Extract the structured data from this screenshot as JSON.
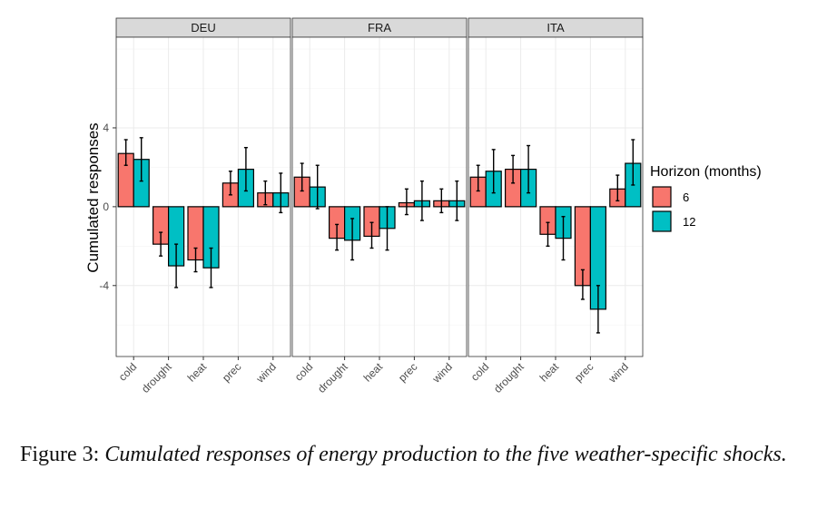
{
  "chart_data": {
    "type": "bar",
    "ylabel": "Cumulated responses",
    "yticks": [
      4,
      0,
      -4
    ],
    "ylim": [
      -7.6,
      8.6
    ],
    "categories": [
      "cold",
      "drought",
      "heat",
      "prec",
      "wind"
    ],
    "legend": {
      "title": "Horizon (months)",
      "placement": "right",
      "entries": [
        {
          "label": "6",
          "color": "#F8766D"
        },
        {
          "label": "12",
          "color": "#00BFC4"
        }
      ]
    },
    "panels": [
      {
        "name": "DEU",
        "series": [
          {
            "name": "6",
            "values": [
              2.7,
              -1.9,
              -2.7,
              1.2,
              0.7
            ],
            "err_low": [
              2.1,
              -2.5,
              -3.3,
              0.6,
              0.1
            ],
            "err_high": [
              3.4,
              -1.3,
              -2.1,
              1.8,
              1.3
            ]
          },
          {
            "name": "12",
            "values": [
              2.4,
              -3.0,
              -3.1,
              1.9,
              0.7
            ],
            "err_low": [
              1.3,
              -4.1,
              -4.1,
              0.8,
              -0.3
            ],
            "err_high": [
              3.5,
              -1.9,
              -2.1,
              3.0,
              1.7
            ]
          }
        ]
      },
      {
        "name": "FRA",
        "series": [
          {
            "name": "6",
            "values": [
              1.5,
              -1.6,
              -1.5,
              0.2,
              0.3
            ],
            "err_low": [
              0.8,
              -2.2,
              -2.1,
              -0.4,
              -0.3
            ],
            "err_high": [
              2.2,
              -0.9,
              -0.8,
              0.9,
              0.9
            ]
          },
          {
            "name": "12",
            "values": [
              1.0,
              -1.7,
              -1.1,
              0.3,
              0.3
            ],
            "err_low": [
              -0.1,
              -2.7,
              -2.2,
              -0.7,
              -0.7
            ],
            "err_high": [
              2.1,
              -0.6,
              0.0,
              1.3,
              1.3
            ]
          }
        ]
      },
      {
        "name": "ITA",
        "series": [
          {
            "name": "6",
            "values": [
              1.5,
              1.9,
              -1.4,
              -4.0,
              0.9
            ],
            "err_low": [
              0.8,
              1.2,
              -2.0,
              -4.7,
              0.3
            ],
            "err_high": [
              2.1,
              2.6,
              -0.8,
              -3.2,
              1.6
            ]
          },
          {
            "name": "12",
            "values": [
              1.8,
              1.9,
              -1.6,
              -5.2,
              2.2
            ],
            "err_low": [
              0.7,
              0.7,
              -2.7,
              -6.4,
              1.1
            ],
            "err_high": [
              2.9,
              3.1,
              -0.5,
              -4.0,
              3.4
            ]
          }
        ]
      }
    ]
  },
  "caption": {
    "label": "Figure 3:",
    "text": "Cumulated responses of energy production to the five weather-specific shocks."
  }
}
